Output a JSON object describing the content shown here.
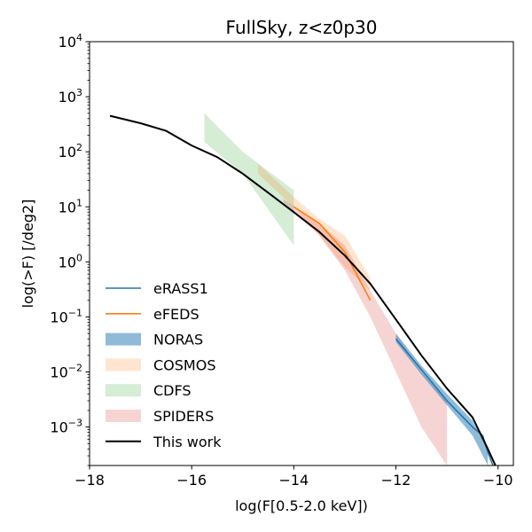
{
  "chart_data": {
    "type": "area",
    "title": "FullSky, z<z0p30",
    "xlabel": "log(F[0.5-2.0 keV])",
    "ylabel": "log(>F) [/deg2]",
    "xlim": [
      -18,
      -9.7
    ],
    "ylim": [
      0.0002,
      10000
    ],
    "yscale": "log",
    "grid": false,
    "legend_position": "lower-left",
    "x_ticks": [
      -18,
      -16,
      -14,
      -12,
      -10
    ],
    "x_tick_labels": [
      "−18",
      "−16",
      "−14",
      "−12",
      "−10"
    ],
    "y_ticks": [
      {
        "value": 10000,
        "base": "10",
        "exp": "4"
      },
      {
        "value": 1000,
        "base": "10",
        "exp": "3"
      },
      {
        "value": 100,
        "base": "10",
        "exp": "2"
      },
      {
        "value": 10,
        "base": "10",
        "exp": "1"
      },
      {
        "value": 1,
        "base": "10",
        "exp": "0"
      },
      {
        "value": 0.1,
        "base": "10",
        "exp": "−1"
      },
      {
        "value": 0.01,
        "base": "10",
        "exp": "−2"
      },
      {
        "value": 0.001,
        "base": "10",
        "exp": "−3"
      }
    ],
    "series": [
      {
        "name": "CDFS",
        "kind": "band",
        "color": "#2ca02c",
        "alpha": 0.2,
        "x": [
          -15.75,
          -15.0,
          -14.0
        ],
        "upper": [
          500,
          100,
          20
        ],
        "lower": [
          150,
          40,
          2
        ]
      },
      {
        "name": "COSMOS",
        "kind": "band",
        "color": "#ff7f0e",
        "alpha": 0.2,
        "x": [
          -14.7,
          -14.0,
          -13.5,
          -13.0,
          -12.5
        ],
        "upper": [
          60,
          15,
          6,
          3,
          0.5
        ],
        "lower": [
          40,
          10,
          3,
          0.8,
          0.3
        ]
      },
      {
        "name": "SPIDERS",
        "kind": "band",
        "color": "#d62728",
        "alpha": 0.2,
        "x": [
          -14.2,
          -13.5,
          -13.0,
          -12.5,
          -12.0,
          -11.5,
          -11.0
        ],
        "upper": [
          14,
          5,
          2,
          0.3,
          0.05,
          0.01,
          0.003
        ],
        "lower": [
          12,
          3,
          0.7,
          0.1,
          0.01,
          0.001,
          0.0002
        ]
      },
      {
        "name": "NORAS",
        "kind": "band",
        "color": "#1f77b4",
        "alpha": 0.5,
        "x": [
          -12.0,
          -11.5,
          -11.0,
          -10.5,
          -10.2
        ],
        "upper": [
          0.05,
          0.013,
          0.004,
          0.0013,
          0.0004
        ],
        "lower": [
          0.035,
          0.009,
          0.0025,
          0.0007,
          0.0002
        ]
      },
      {
        "name": "eRASS1",
        "kind": "line",
        "color": "#1f77b4",
        "x": [
          -12.0,
          -11.5,
          -11.0,
          -10.5,
          -10.3,
          -10.2,
          -10.1
        ],
        "y": [
          0.04,
          0.011,
          0.003,
          0.001,
          0.0007,
          0.00035,
          0.0002
        ]
      },
      {
        "name": "eFEDS",
        "kind": "line",
        "color": "#ff7f0e",
        "x": [
          -14.0,
          -13.5,
          -13.0,
          -12.5
        ],
        "y": [
          10,
          5,
          1.5,
          0.2
        ]
      },
      {
        "name": "This work",
        "kind": "line",
        "color": "#000000",
        "x": [
          -17.6,
          -17.0,
          -16.5,
          -16.0,
          -15.5,
          -15.0,
          -14.5,
          -14.0,
          -13.5,
          -13.0,
          -12.5,
          -12.0,
          -11.5,
          -11.0,
          -10.5,
          -10.2,
          -10.05
        ],
        "y": [
          450,
          330,
          240,
          130,
          80,
          40,
          18,
          8,
          3.5,
          1.3,
          0.4,
          0.09,
          0.02,
          0.005,
          0.0015,
          0.0004,
          0.0002
        ]
      }
    ],
    "legend_order": [
      "eRASS1",
      "eFEDS",
      "NORAS",
      "COSMOS",
      "CDFS",
      "SPIDERS",
      "This work"
    ]
  }
}
